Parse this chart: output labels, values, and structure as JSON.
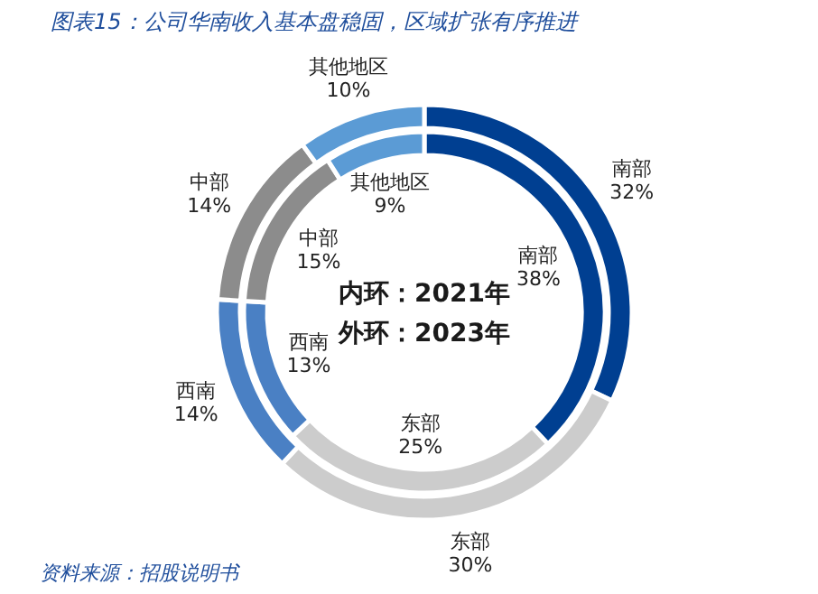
{
  "chart_data": {
    "type": "donut",
    "title": "图表15：公司华南收入基本盘稳固，区域扩张有序推进",
    "categories": [
      "南部",
      "东部",
      "西南",
      "中部",
      "其他地区"
    ],
    "colors": [
      "#003f91",
      "#cccccc",
      "#4a80c4",
      "#8c8c8c",
      "#5b9bd5"
    ],
    "series": [
      {
        "values": [
          38,
          25,
          13,
          15,
          9
        ],
        "value_labels": [
          "38%",
          "25%",
          "13%",
          "15%",
          "9%"
        ]
      },
      {
        "values": [
          32,
          30,
          14,
          14,
          10
        ],
        "value_labels": [
          "32%",
          "30%",
          "14%",
          "14%",
          "10%"
        ]
      }
    ],
    "data_labels": true,
    "annotations": [
      "内环：2021年",
      "外环：2023年",
      "资料来源：招股说明书"
    ]
  }
}
